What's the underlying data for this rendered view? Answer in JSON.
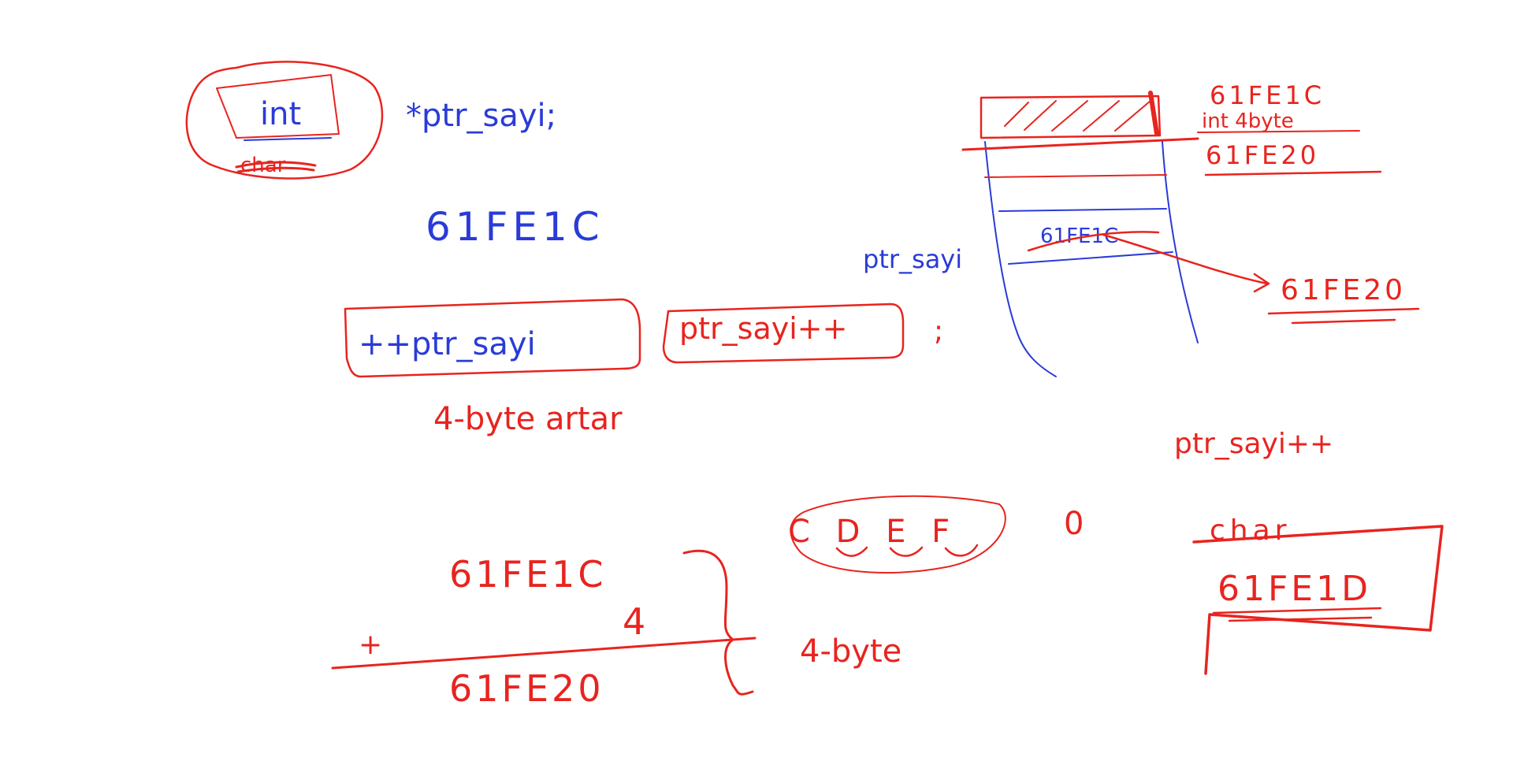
{
  "colors": {
    "background": "#ffffff",
    "red_ink": "#e8241f",
    "blue_ink": "#2a3bd8"
  },
  "declaration": {
    "type_circled": "int",
    "type_struck": "char",
    "variable": "*ptr_sayi;"
  },
  "address_initial": "61FE1C",
  "increment": {
    "prefix_form": "++ptr_sayi",
    "postfix_form": "ptr_sayi++",
    "terminator": ";",
    "note": "4-byte artar"
  },
  "addition": {
    "operand": "61FE1C",
    "addend": "4",
    "operator": "+",
    "result": "61FE20",
    "brace_note": "4-byte"
  },
  "hex_digits": {
    "sequence": "C D E F",
    "trailing": "0"
  },
  "memory_diagram": {
    "top_address": "61FE1C",
    "cell_note": "int 4byte",
    "next_address": "61FE20",
    "pointer_label": "ptr_sayi",
    "pointer_old_value": "61FE1C",
    "pointer_new_value": "61FE20"
  },
  "char_example": {
    "expression": "ptr_sayi++",
    "type_label": "char",
    "address": "61FE1D"
  }
}
